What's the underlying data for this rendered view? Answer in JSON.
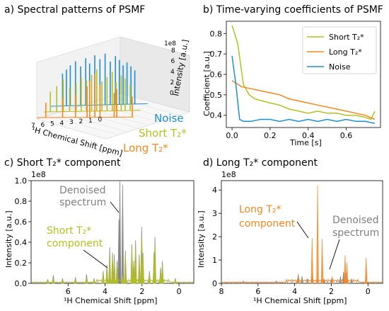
{
  "colors": {
    "short": "#b5c020",
    "long": "#f5871f",
    "noise": "#1f8fcf",
    "denoised": "#808080"
  },
  "chart_data": [
    {
      "id": "a",
      "type": "3d-spectra",
      "title": "a) Spectral patterns of PSMF",
      "xlabel": "¹H Chemical Shift [ppm]",
      "zlabel": "Intensity [a.u.]",
      "x_ticks": [
        "7",
        "6",
        "5",
        "4",
        "3",
        "2",
        "1",
        "0"
      ],
      "z_ticks": [
        "0",
        "2",
        "4",
        "6",
        "8"
      ],
      "z_scale_label": "1e8",
      "series": [
        {
          "name": "Noise",
          "color_key": "noise",
          "lines": [
            1.0,
            1.3,
            1.6,
            1.9,
            2.2,
            2.5,
            2.9,
            3.3,
            3.7,
            4.1,
            4.5,
            4.8,
            5.2,
            5.6,
            6.0,
            6.3,
            6.6
          ],
          "lines_h": [
            5.0,
            5.6,
            6.2,
            5.8,
            6.6,
            7.2,
            6.4,
            7.6,
            6.8,
            7.4,
            6.2,
            7.0,
            5.8,
            6.6,
            6.0,
            5.4,
            4.8
          ]
        },
        {
          "name": "Short T₂*",
          "color_key": "short",
          "lines": [
            0.8,
            1.2,
            1.5,
            1.9,
            2.2,
            2.6,
            3.0,
            3.4,
            3.8,
            4.2,
            4.6,
            5.0,
            5.5,
            6.0,
            6.5,
            7.0
          ],
          "lines_h": [
            3.8,
            4.8,
            5.2,
            4.2,
            5.8,
            5.0,
            4.4,
            6.2,
            5.4,
            4.6,
            5.0,
            4.2,
            3.6,
            4.8,
            3.8,
            3.0
          ]
        },
        {
          "name": "Long T₂*",
          "color_key": "long",
          "lines": [
            0.1,
            1.3,
            1.5,
            2.6,
            3.0,
            3.4,
            3.6,
            4.5,
            5.5,
            6.8
          ],
          "lines_h": [
            3.0,
            4.2,
            3.6,
            4.8,
            6.4,
            5.4,
            4.6,
            3.4,
            2.8,
            2.2
          ]
        }
      ]
    },
    {
      "id": "b",
      "type": "line",
      "title": "b) Time-varying coefficients of PSMF",
      "xlabel": "Time [s]",
      "ylabel": "Coefficient [a.u.]",
      "xlim": [
        -0.03,
        0.78
      ],
      "ylim": [
        0.34,
        0.86
      ],
      "xticks": [
        0.0,
        0.2,
        0.4,
        0.6
      ],
      "yticks": [
        0.4,
        0.5,
        0.6,
        0.7,
        0.8
      ],
      "legend": "top-right",
      "series": [
        {
          "name": "Short T₂*",
          "color_key": "short",
          "x": [
            0.0,
            0.03,
            0.06,
            0.09,
            0.12,
            0.16,
            0.2,
            0.25,
            0.3,
            0.35,
            0.4,
            0.45,
            0.5,
            0.55,
            0.6,
            0.65,
            0.7,
            0.73,
            0.75
          ],
          "y": [
            0.84,
            0.75,
            0.55,
            0.5,
            0.48,
            0.47,
            0.46,
            0.45,
            0.43,
            0.42,
            0.41,
            0.42,
            0.41,
            0.41,
            0.4,
            0.4,
            0.39,
            0.38,
            0.42
          ]
        },
        {
          "name": "Long T₂*",
          "color_key": "long",
          "x": [
            0.0,
            0.05,
            0.1,
            0.15,
            0.2,
            0.25,
            0.3,
            0.35,
            0.4,
            0.45,
            0.5,
            0.55,
            0.6,
            0.65,
            0.7,
            0.75
          ],
          "y": [
            0.57,
            0.54,
            0.53,
            0.52,
            0.51,
            0.5,
            0.48,
            0.47,
            0.46,
            0.45,
            0.44,
            0.43,
            0.42,
            0.41,
            0.4,
            0.38
          ]
        },
        {
          "name": "Noise",
          "color_key": "noise",
          "x": [
            0.0,
            0.02,
            0.04,
            0.06,
            0.1,
            0.15,
            0.2,
            0.25,
            0.3,
            0.35,
            0.4,
            0.45,
            0.5,
            0.55,
            0.6,
            0.65,
            0.7,
            0.75
          ],
          "y": [
            0.69,
            0.55,
            0.38,
            0.37,
            0.37,
            0.38,
            0.38,
            0.37,
            0.38,
            0.37,
            0.38,
            0.37,
            0.38,
            0.37,
            0.38,
            0.37,
            0.37,
            0.36
          ]
        }
      ]
    },
    {
      "id": "c",
      "type": "spectrum",
      "title": "c) Short T₂* component",
      "xlabel": "¹H Chemical Shift [ppm]",
      "ylabel": "Intensity [a.u.]",
      "y_scale_label": "1e8",
      "xlim": [
        8.0,
        -0.8
      ],
      "ylim": [
        0,
        1.0
      ],
      "xticks": [
        6,
        4,
        2,
        0
      ],
      "yticks": [
        0.0,
        0.2,
        0.4,
        0.6,
        0.8,
        1.0
      ],
      "annotations": [
        {
          "text_lines": [
            "Denoised",
            "spectrum"
          ],
          "color_key": "denoised"
        },
        {
          "text_lines": [
            "Short T₂*",
            "component"
          ],
          "color_key": "short"
        }
      ],
      "series": [
        {
          "name": "Denoised spectrum",
          "color_key": "denoised",
          "peaks": [
            [
              7.1,
              0.04
            ],
            [
              6.8,
              0.08
            ],
            [
              6.3,
              0.05
            ],
            [
              5.6,
              0.06
            ],
            [
              5.0,
              0.09
            ],
            [
              4.6,
              0.05
            ],
            [
              4.1,
              0.12
            ],
            [
              3.9,
              0.18
            ],
            [
              3.75,
              0.35
            ],
            [
              3.6,
              0.3
            ],
            [
              3.5,
              0.28
            ],
            [
              3.35,
              0.22
            ],
            [
              3.25,
              0.62
            ],
            [
              3.2,
              1.0
            ],
            [
              3.05,
              0.96
            ],
            [
              2.9,
              0.32
            ],
            [
              2.55,
              0.38
            ],
            [
              2.45,
              0.22
            ],
            [
              2.35,
              0.42
            ],
            [
              2.15,
              0.28
            ],
            [
              2.02,
              0.55
            ],
            [
              1.95,
              0.3
            ],
            [
              1.6,
              0.12
            ],
            [
              1.35,
              0.3
            ],
            [
              1.3,
              0.45
            ],
            [
              1.0,
              0.15
            ],
            [
              0.9,
              0.22
            ],
            [
              0.2,
              0.05
            ]
          ]
        },
        {
          "name": "Short T₂* component",
          "color_key": "short",
          "peaks": [
            [
              7.1,
              0.03
            ],
            [
              6.8,
              0.05
            ],
            [
              6.3,
              0.03
            ],
            [
              5.6,
              0.04
            ],
            [
              5.0,
              0.06
            ],
            [
              4.6,
              0.04
            ],
            [
              4.1,
              0.1
            ],
            [
              3.9,
              0.15
            ],
            [
              3.75,
              0.28
            ],
            [
              3.6,
              0.25
            ],
            [
              3.5,
              0.22
            ],
            [
              3.35,
              0.18
            ],
            [
              3.05,
              0.08
            ],
            [
              2.9,
              0.28
            ],
            [
              2.55,
              0.33
            ],
            [
              2.45,
              0.2
            ],
            [
              2.35,
              0.37
            ],
            [
              2.15,
              0.24
            ],
            [
              2.02,
              0.45
            ],
            [
              1.95,
              0.26
            ],
            [
              1.6,
              0.1
            ],
            [
              1.35,
              0.26
            ],
            [
              1.3,
              0.38
            ],
            [
              1.0,
              0.12
            ],
            [
              0.9,
              0.18
            ],
            [
              0.2,
              0.04
            ]
          ]
        }
      ]
    },
    {
      "id": "d",
      "type": "spectrum",
      "title": "d) Long T₂* component",
      "xlabel": "¹H Chemical Shift [ppm]",
      "ylabel": "Intensity [a.u.]",
      "y_scale_label": "1e8",
      "xlim": [
        8.0,
        -0.8
      ],
      "ylim": [
        0,
        4.4
      ],
      "xticks": [
        8,
        6,
        4,
        2,
        0
      ],
      "yticks": [
        0,
        1,
        2,
        3,
        4
      ],
      "annotations": [
        {
          "text_lines": [
            "Long T₂*",
            "component"
          ],
          "color_key": "long"
        },
        {
          "text_lines": [
            "Denoised",
            "spectrum"
          ],
          "color_key": "denoised"
        }
      ],
      "series": [
        {
          "name": "Denoised spectrum",
          "color_key": "denoised",
          "peaks": [
            [
              6.8,
              0.1
            ],
            [
              5.0,
              0.1
            ],
            [
              3.8,
              0.4
            ],
            [
              3.6,
              0.3
            ],
            [
              3.3,
              0.2
            ],
            [
              3.05,
              0.35
            ],
            [
              2.4,
              0.2
            ],
            [
              2.0,
              0.2
            ],
            [
              1.5,
              0.3
            ],
            [
              1.33,
              0.5
            ],
            [
              1.2,
              0.45
            ],
            [
              0.9,
              0.2
            ]
          ]
        },
        {
          "name": "Long T₂* component",
          "color_key": "long",
          "peaks": [
            [
              3.8,
              0.3
            ],
            [
              3.05,
              1.95
            ],
            [
              2.75,
              4.2
            ],
            [
              2.5,
              1.9
            ],
            [
              1.95,
              0.3
            ],
            [
              1.25,
              1.2
            ],
            [
              1.15,
              0.9
            ],
            [
              0.1,
              1.1
            ]
          ]
        }
      ]
    }
  ]
}
